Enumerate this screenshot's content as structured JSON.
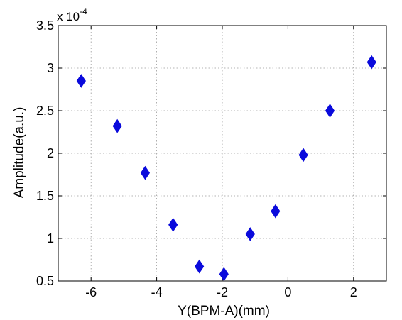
{
  "chart_data": {
    "type": "scatter",
    "xlabel": "Y(BPM-A)(mm)",
    "ylabel": "Amplitude(a.u.)",
    "y_scale_label": "x 10",
    "y_scale_exponent": "-4",
    "xlim": [
      -7,
      3
    ],
    "ylim": [
      0.5,
      3.5
    ],
    "y_unit_multiplier": 0.0001,
    "xticks": [
      -6,
      -4,
      -2,
      0,
      2
    ],
    "xtick_labels": [
      "-6",
      "-4",
      "-2",
      "0",
      "2"
    ],
    "yticks": [
      0.5,
      1,
      1.5,
      2,
      2.5,
      3,
      3.5
    ],
    "ytick_labels": [
      "0.5",
      "1",
      "1.5",
      "2",
      "2.5",
      "3",
      "3.5"
    ],
    "grid": true,
    "marker": "diamond",
    "marker_color": "#0a0adc",
    "series": [
      {
        "x": [
          -6.3,
          -5.2,
          -4.35,
          -3.5,
          -2.7,
          -1.95,
          -1.15,
          -0.38,
          0.47,
          1.28,
          2.55
        ],
        "y": [
          2.85,
          2.32,
          1.77,
          1.16,
          0.67,
          0.58,
          1.05,
          1.32,
          1.98,
          2.5,
          3.07
        ]
      }
    ]
  }
}
